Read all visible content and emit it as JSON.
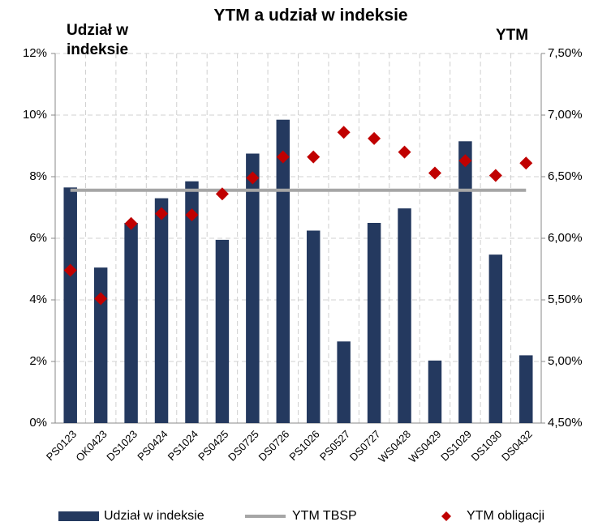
{
  "chart_data": {
    "type": "bar_line",
    "title": "YTM a udział w indeksie",
    "y_label": "Udział w indeksie",
    "y2_label": "YTM",
    "categories": [
      "PS0123",
      "OK0423",
      "DS1023",
      "PS0424",
      "PS1024",
      "PS0425",
      "DS0725",
      "DS0726",
      "PS1026",
      "PS0527",
      "DS0727",
      "WS0428",
      "WS0429",
      "DS1029",
      "DS1030",
      "DS0432"
    ],
    "series": [
      {
        "name": "Udział w indeksie",
        "type": "bar",
        "color": "#24395f",
        "values": [
          7.65,
          5.05,
          6.5,
          7.3,
          7.85,
          5.95,
          8.75,
          9.85,
          6.25,
          2.65,
          6.5,
          6.97,
          2.03,
          9.15,
          5.47,
          2.2
        ]
      },
      {
        "name": "YTM TBSP",
        "type": "line",
        "axis": "y2",
        "color": "#a6a6a6",
        "values": [
          6.39,
          6.39,
          6.39,
          6.39,
          6.39,
          6.39,
          6.39,
          6.39,
          6.39,
          6.39,
          6.39,
          6.39,
          6.39,
          6.39,
          6.39,
          6.39
        ]
      },
      {
        "name": "YTM obligacji",
        "type": "scatter",
        "axis": "y2",
        "color": "#c00000",
        "values": [
          5.74,
          5.51,
          6.12,
          6.2,
          6.19,
          6.36,
          6.49,
          6.66,
          6.66,
          6.86,
          6.81,
          6.7,
          6.53,
          6.63,
          6.51,
          6.61
        ]
      }
    ],
    "ylim": [
      0,
      12
    ],
    "yticks": [
      {
        "value": 0,
        "label": "0%"
      },
      {
        "value": 2,
        "label": "2%"
      },
      {
        "value": 4,
        "label": "4%"
      },
      {
        "value": 6,
        "label": "6%"
      },
      {
        "value": 8,
        "label": "8%"
      },
      {
        "value": 10,
        "label": "10%"
      },
      {
        "value": 12,
        "label": "12%"
      }
    ],
    "y2lim": [
      4.5,
      7.5
    ],
    "y2ticks": [
      {
        "value": 4.5,
        "label": "4,50%"
      },
      {
        "value": 5,
        "label": "5,00%"
      },
      {
        "value": 5.5,
        "label": "5,50%"
      },
      {
        "value": 6,
        "label": "6,00%"
      },
      {
        "value": 6.5,
        "label": "6,50%"
      },
      {
        "value": 7,
        "label": "7,00%"
      },
      {
        "value": 7.5,
        "label": "7,50%"
      }
    ],
    "grid": true,
    "legend": "bottom"
  }
}
